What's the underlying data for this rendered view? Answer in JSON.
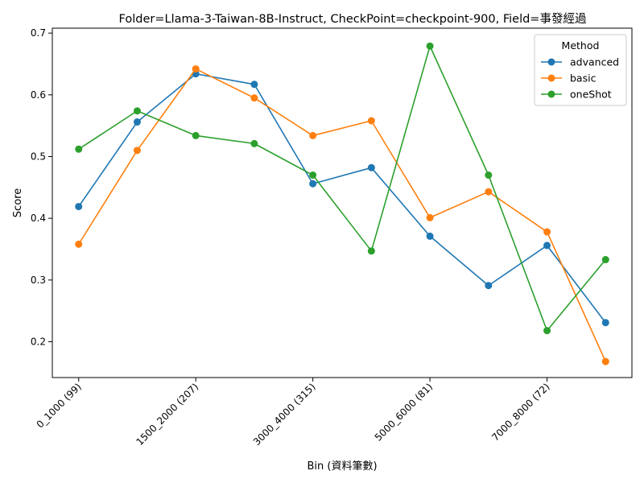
{
  "chart_data": {
    "type": "line",
    "title": "Folder=Llama-3-Taiwan-8B-Instruct, CheckPoint=checkpoint-900, Field=事發經過",
    "xlabel": "Bin (資料筆數)",
    "ylabel": "Score",
    "ylim": [
      0.142,
      0.708
    ],
    "yticks": [
      0.2,
      0.3,
      0.4,
      0.5,
      0.6,
      0.7
    ],
    "ytick_labels": [
      "0.2",
      "0.3",
      "0.4",
      "0.5",
      "0.6",
      "0.7"
    ],
    "x": [
      0,
      1,
      2,
      3,
      4,
      5,
      6,
      7,
      8,
      9
    ],
    "xlim": [
      -0.45,
      9.45
    ],
    "xticks": [
      0,
      2,
      4,
      6,
      8
    ],
    "xtick_labels": [
      "0_1000 (99)",
      "1500_2000 (207)",
      "3000_4000 (315)",
      "5000_6000 (81)",
      "7000_8000 (72)"
    ],
    "legend": {
      "title": "Method",
      "position": "top-right"
    },
    "grid": false,
    "series": [
      {
        "name": "advanced",
        "color": "#1f77b4",
        "values": [
          0.419,
          0.556,
          0.634,
          0.617,
          0.456,
          0.482,
          0.371,
          0.291,
          0.356,
          0.231
        ]
      },
      {
        "name": "basic",
        "color": "#ff7f0e",
        "values": [
          0.358,
          0.51,
          0.642,
          0.595,
          0.534,
          0.558,
          0.401,
          0.443,
          0.378,
          0.168
        ]
      },
      {
        "name": "oneShot",
        "color": "#2ca02c",
        "values": [
          0.512,
          0.574,
          0.534,
          0.521,
          0.47,
          0.347,
          0.679,
          0.47,
          0.218,
          0.333
        ]
      }
    ]
  }
}
